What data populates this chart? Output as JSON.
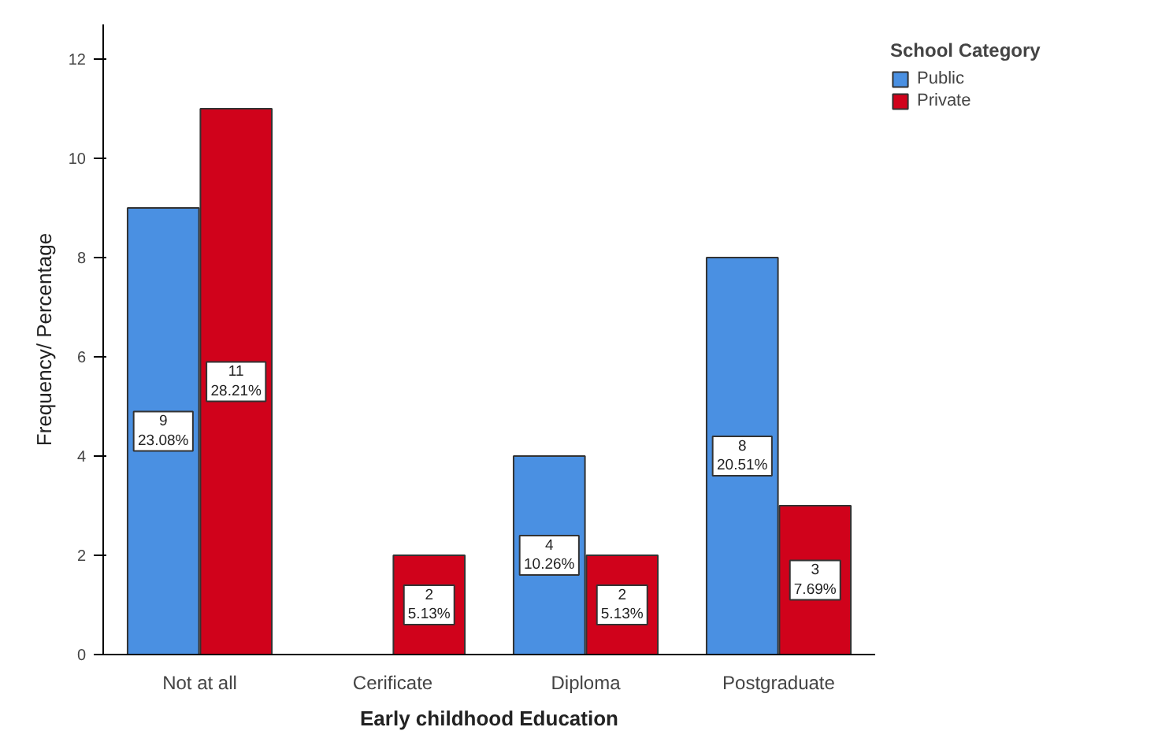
{
  "chart_data": {
    "type": "bar",
    "xlabel": "Early childhood Education",
    "ylabel": "Frequency/ Percentage",
    "legend_title": "School Category",
    "categories": [
      "Not at all",
      "Cerificate",
      "Diploma",
      "Postgraduate"
    ],
    "series": [
      {
        "name": "Public",
        "color": "#4a90e2",
        "values": [
          9,
          null,
          4,
          8
        ],
        "value_labels": [
          "9\n23.08%",
          null,
          "4\n10.26%",
          "8\n20.51%"
        ]
      },
      {
        "name": "Private",
        "color": "#d0021b",
        "values": [
          11,
          2,
          2,
          3
        ],
        "value_labels": [
          "11\n28.21%",
          "2\n5.13%",
          "2\n5.13%",
          "3\n7.69%"
        ]
      }
    ],
    "ylim": [
      0,
      12.7
    ],
    "yticks": [
      0,
      2,
      4,
      6,
      8,
      10,
      12
    ],
    "grid": false,
    "legend": "top right"
  }
}
